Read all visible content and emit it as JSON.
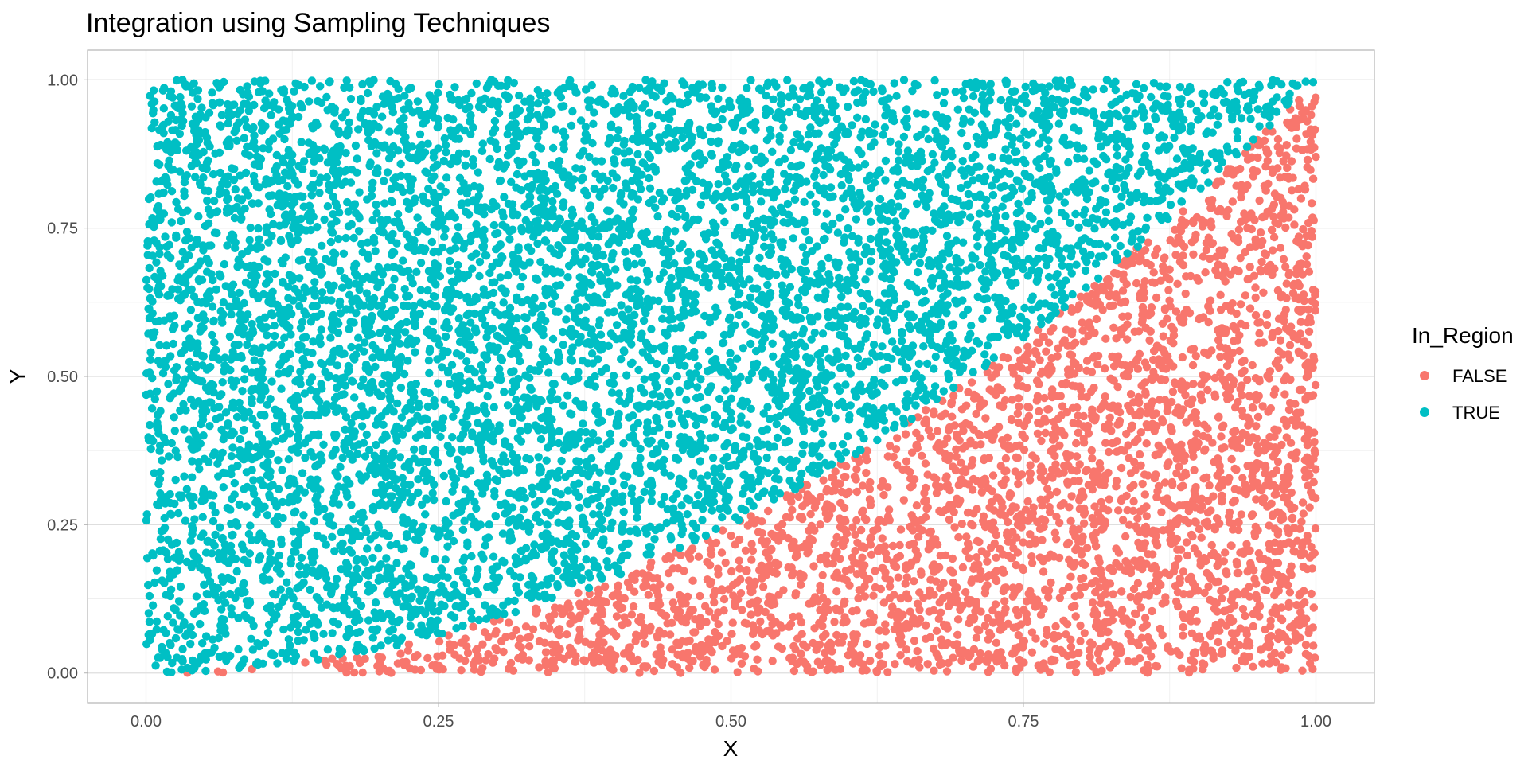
{
  "chart_data": {
    "type": "scatter",
    "title": "Integration using Sampling Techniques",
    "xlabel": "X",
    "ylabel": "Y",
    "xlim": [
      -0.05,
      1.05
    ],
    "ylim": [
      -0.05,
      1.05
    ],
    "x_ticks": [
      0,
      0.25,
      0.5,
      0.75,
      1
    ],
    "x_tick_labels": [
      "0.00",
      "0.25",
      "0.50",
      "0.75",
      "1.00"
    ],
    "y_ticks": [
      0,
      0.25,
      0.5,
      0.75,
      1
    ],
    "y_tick_labels": [
      "0.00",
      "0.25",
      "0.50",
      "0.75",
      "1.00"
    ],
    "grid": true,
    "legend": {
      "title": "In_Region",
      "placement": "right",
      "entries": [
        {
          "label": "FALSE",
          "color": "#F8766D"
        },
        {
          "label": "TRUE",
          "color": "#00BFC4"
        }
      ]
    },
    "series": [
      {
        "name": "FALSE",
        "color": "#F8766D",
        "rule": "y < x^2",
        "approx_points": 3300,
        "sample_points": [
          [
            0.025,
            0.0
          ],
          [
            0.1,
            0.005
          ],
          [
            0.2,
            0.02
          ],
          [
            0.3,
            0.05
          ],
          [
            0.4,
            0.1
          ],
          [
            0.5,
            0.2
          ],
          [
            0.6,
            0.3
          ],
          [
            0.7,
            0.4
          ],
          [
            0.8,
            0.55
          ],
          [
            0.9,
            0.7
          ],
          [
            0.95,
            0.85
          ],
          [
            1.0,
            0.97
          ]
        ]
      },
      {
        "name": "TRUE",
        "color": "#00BFC4",
        "rule": "y >= x^2",
        "approx_points": 6700,
        "sample_points": [
          [
            0.0,
            0.0
          ],
          [
            0.0,
            0.5
          ],
          [
            0.0,
            0.98
          ],
          [
            0.1,
            0.1
          ],
          [
            0.2,
            0.5
          ],
          [
            0.3,
            0.2
          ],
          [
            0.5,
            0.5
          ],
          [
            0.7,
            0.8
          ],
          [
            0.9,
            0.95
          ],
          [
            1.0,
            1.0
          ]
        ]
      }
    ]
  }
}
